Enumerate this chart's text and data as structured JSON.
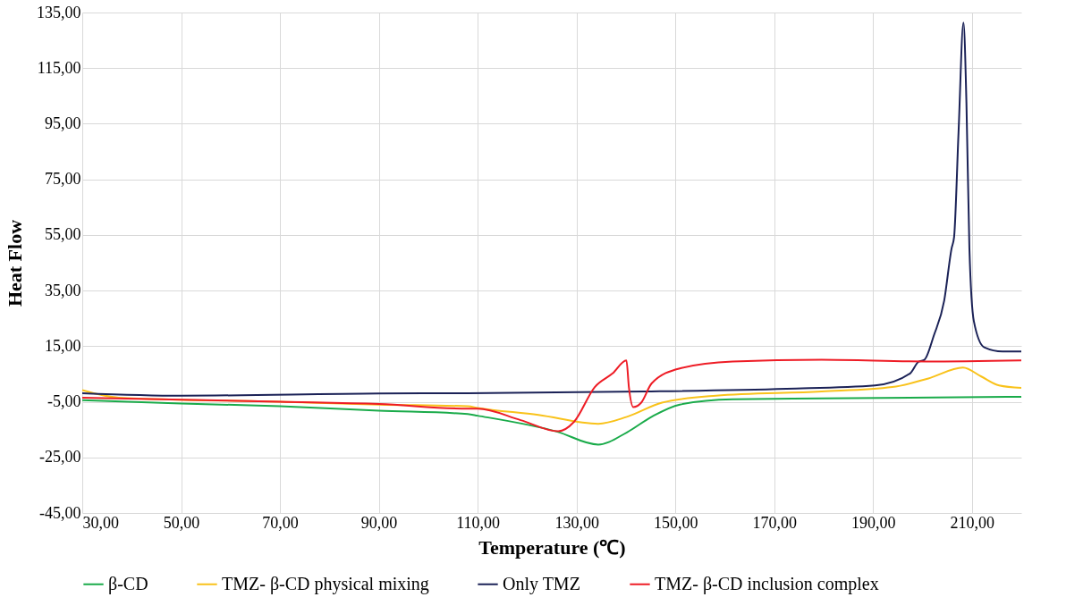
{
  "chart_data": {
    "type": "line",
    "xlabel": "Temperature (℃)",
    "ylabel": "Heat Flow",
    "xlim": [
      30,
      220
    ],
    "ylim": [
      -45,
      135
    ],
    "xticks": [
      {
        "value": 30,
        "label": "30,00"
      },
      {
        "value": 50,
        "label": "50,00"
      },
      {
        "value": 70,
        "label": "70,00"
      },
      {
        "value": 90,
        "label": "90,00"
      },
      {
        "value": 110,
        "label": "110,00"
      },
      {
        "value": 130,
        "label": "130,00"
      },
      {
        "value": 150,
        "label": "150,00"
      },
      {
        "value": 170,
        "label": "170,00"
      },
      {
        "value": 190,
        "label": "190,00"
      },
      {
        "value": 210,
        "label": "210,00"
      }
    ],
    "yticks": [
      {
        "value": -45,
        "label": "-45,00"
      },
      {
        "value": -25,
        "label": "-25,00"
      },
      {
        "value": -5,
        "label": "-5,00"
      },
      {
        "value": 15,
        "label": "15,00"
      },
      {
        "value": 35,
        "label": "35,00"
      },
      {
        "value": 55,
        "label": "55,00"
      },
      {
        "value": 75,
        "label": "75,00"
      },
      {
        "value": 95,
        "label": "95,00"
      },
      {
        "value": 115,
        "label": "115,00"
      },
      {
        "value": 135,
        "label": "135,00"
      }
    ],
    "grid": true,
    "legend": "bottom",
    "marker": "none",
    "line_style": "solid",
    "series": [
      {
        "name": "β-CD",
        "color": "#1aab4a",
        "x": [
          30,
          50,
          70,
          90,
          108,
          110,
          126,
          134.4,
          140.2,
          145.2,
          150.9,
          161.6,
          179.6,
          220
        ],
        "values": [
          -4.4,
          -5.6,
          -6.6,
          -8.2,
          -9.4,
          -10,
          -15.7,
          -20.4,
          -16,
          -10.4,
          -6,
          -4.1,
          -3.8,
          -3.2
        ]
      },
      {
        "name": "TMZ- β-CD physical mixing",
        "color": "#f9c21a",
        "x": [
          30,
          37.4,
          70,
          90,
          108,
          110,
          122.3,
          134.4,
          140.2,
          147.3,
          158.2,
          179.6,
          193.9,
          201.2,
          208.2,
          211.9,
          215.5,
          220
        ],
        "values": [
          -0.8,
          -3.5,
          -5,
          -6,
          -6.6,
          -7.2,
          -9.7,
          -12.9,
          -10.4,
          -5.3,
          -2.8,
          -1.3,
          0.3,
          3.4,
          7.3,
          4.1,
          0.9,
          0
        ]
      },
      {
        "name": "Only TMZ",
        "color": "#1b2257",
        "x": [
          30,
          50,
          90,
          108,
          143.8,
          172.5,
          190.4,
          197.5,
          199.2,
          200.4,
          202.3,
          204.4,
          205.9,
          206.4,
          207.3,
          208.3,
          208.9,
          209.5,
          210.4,
          212.5,
          216.2,
          220
        ],
        "values": [
          -1.9,
          -2.8,
          -2,
          -1.9,
          -1.3,
          -0.3,
          0.9,
          5.2,
          9.4,
          10.1,
          18.8,
          31.4,
          50.2,
          54.2,
          91.8,
          131.4,
          102.5,
          50.2,
          24,
          14.6,
          13.1,
          13.1
        ]
      },
      {
        "name": "TMZ- β-CD inclusion complex",
        "color": "#ee1c25",
        "x": [
          30,
          70,
          90,
          108,
          110,
          118.7,
          126.3,
          129.5,
          133.7,
          137.3,
          140.1,
          140.6,
          141.5,
          143.1,
          145.2,
          150.9,
          161.6,
          179.6,
          200.8,
          220
        ],
        "values": [
          -3.5,
          -5,
          -5.8,
          -7.5,
          -7.5,
          -11.6,
          -15.6,
          -12.2,
          0.3,
          5.2,
          9.9,
          0.3,
          -6.9,
          -5.3,
          1.6,
          7,
          9.5,
          10.1,
          9.5,
          9.9
        ]
      }
    ]
  }
}
